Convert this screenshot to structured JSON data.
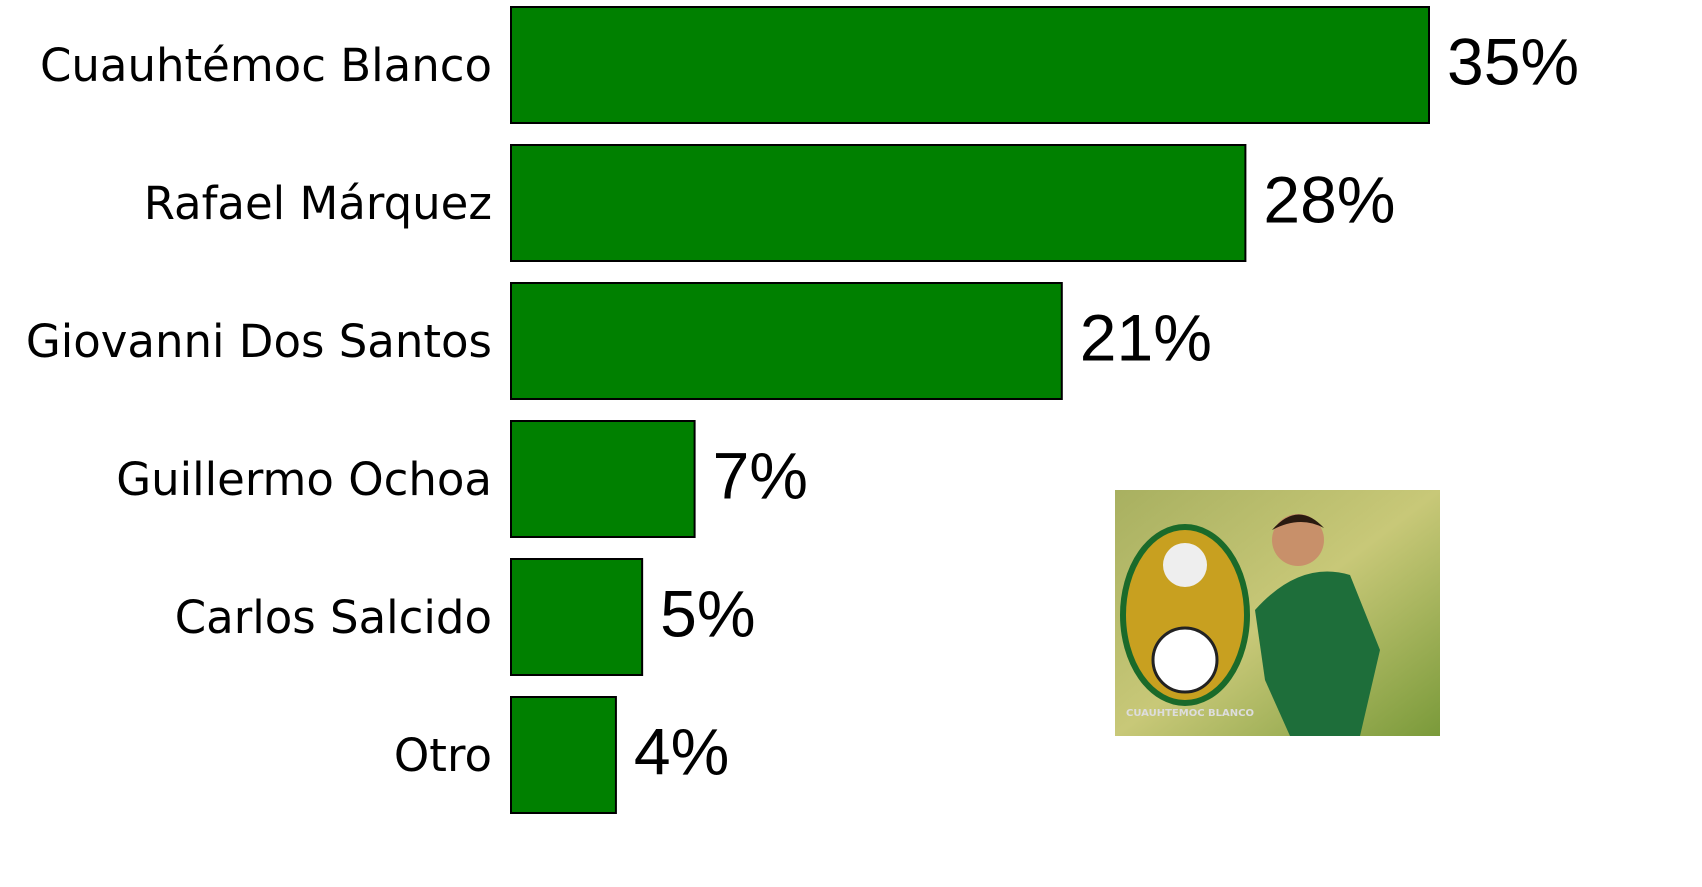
{
  "chart_data": {
    "type": "bar",
    "orientation": "horizontal",
    "categories": [
      "Cuauhtémoc Blanco",
      "Rafael Márquez",
      "Giovanni Dos Santos",
      "Guillermo Ochoa",
      "Carlos Salcido",
      "Otro"
    ],
    "values": [
      35,
      28,
      21,
      7,
      5,
      4
    ],
    "value_labels": [
      "35%",
      "28%",
      "21%",
      "7%",
      "5%",
      "4%"
    ],
    "color": "#008000",
    "image_caption": "CUAUHTEMOC BLANCO"
  }
}
